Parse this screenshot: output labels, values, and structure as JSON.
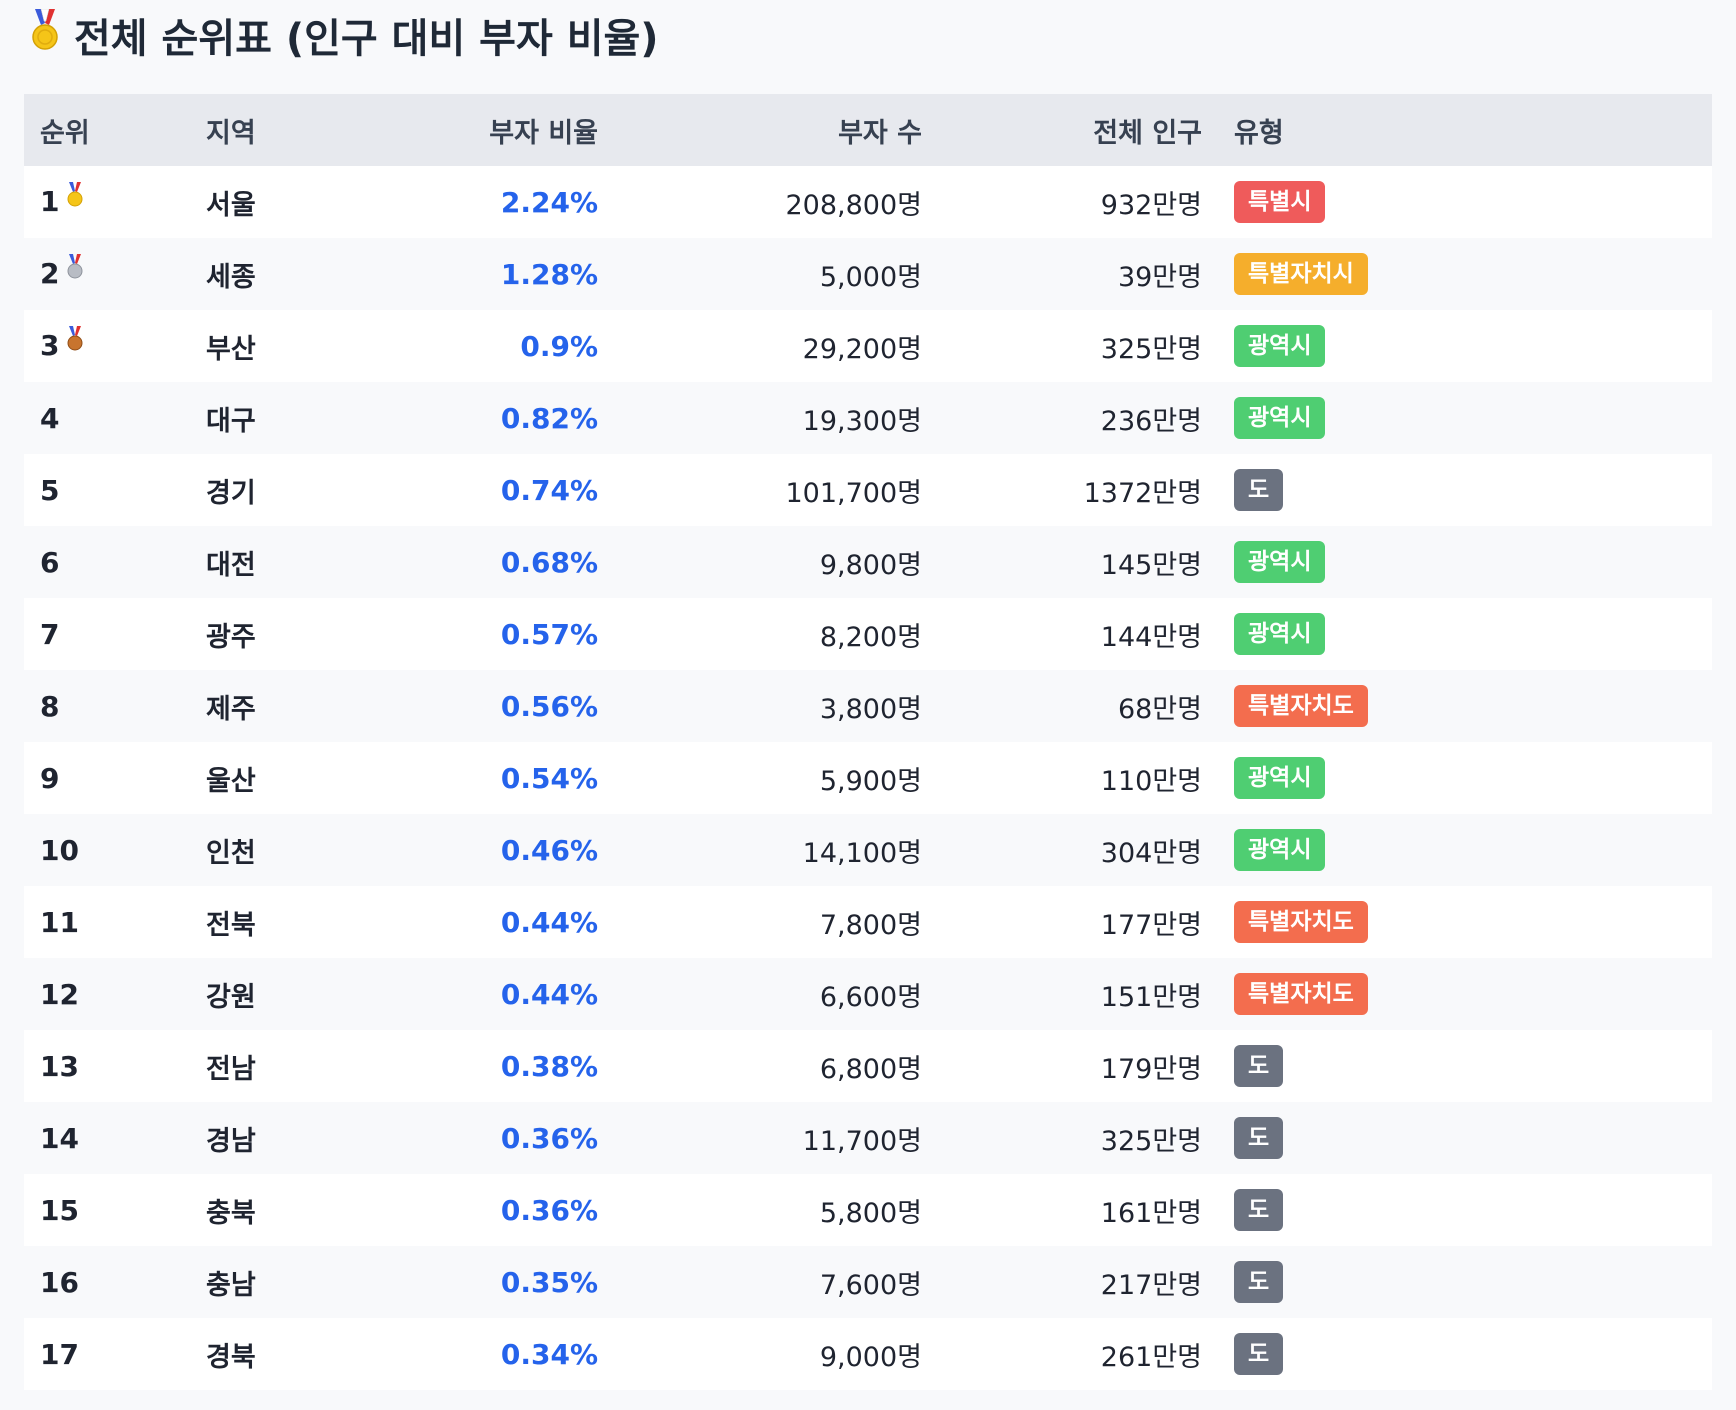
{
  "title": "전체 순위표 (인구 대비 부자 비율)",
  "columns": {
    "rank": "순위",
    "region": "지역",
    "ratio": "부자 비율",
    "rich": "부자 수",
    "population": "전체 인구",
    "type": "유형"
  },
  "type_colors": {
    "특별시": "#ef5b5b",
    "특별자치시": "#f5ae2c",
    "광역시": "#4fce72",
    "도": "#6b7280",
    "특별자치도": "#f36d4e"
  },
  "rows": [
    {
      "rank": "1",
      "medal": "gold",
      "region": "서울",
      "ratio": "2.24%",
      "rich": "208,800명",
      "population": "932만명",
      "type": "특별시"
    },
    {
      "rank": "2",
      "medal": "silver",
      "region": "세종",
      "ratio": "1.28%",
      "rich": "5,000명",
      "population": "39만명",
      "type": "특별자치시"
    },
    {
      "rank": "3",
      "medal": "bronze",
      "region": "부산",
      "ratio": "0.9%",
      "rich": "29,200명",
      "population": "325만명",
      "type": "광역시"
    },
    {
      "rank": "4",
      "region": "대구",
      "ratio": "0.82%",
      "rich": "19,300명",
      "population": "236만명",
      "type": "광역시"
    },
    {
      "rank": "5",
      "region": "경기",
      "ratio": "0.74%",
      "rich": "101,700명",
      "population": "1372만명",
      "type": "도"
    },
    {
      "rank": "6",
      "region": "대전",
      "ratio": "0.68%",
      "rich": "9,800명",
      "population": "145만명",
      "type": "광역시"
    },
    {
      "rank": "7",
      "region": "광주",
      "ratio": "0.57%",
      "rich": "8,200명",
      "population": "144만명",
      "type": "광역시"
    },
    {
      "rank": "8",
      "region": "제주",
      "ratio": "0.56%",
      "rich": "3,800명",
      "population": "68만명",
      "type": "특별자치도"
    },
    {
      "rank": "9",
      "region": "울산",
      "ratio": "0.54%",
      "rich": "5,900명",
      "population": "110만명",
      "type": "광역시"
    },
    {
      "rank": "10",
      "region": "인천",
      "ratio": "0.46%",
      "rich": "14,100명",
      "population": "304만명",
      "type": "광역시"
    },
    {
      "rank": "11",
      "region": "전북",
      "ratio": "0.44%",
      "rich": "7,800명",
      "population": "177만명",
      "type": "특별자치도"
    },
    {
      "rank": "12",
      "region": "강원",
      "ratio": "0.44%",
      "rich": "6,600명",
      "population": "151만명",
      "type": "특별자치도"
    },
    {
      "rank": "13",
      "region": "전남",
      "ratio": "0.38%",
      "rich": "6,800명",
      "population": "179만명",
      "type": "도"
    },
    {
      "rank": "14",
      "region": "경남",
      "ratio": "0.36%",
      "rich": "11,700명",
      "population": "325만명",
      "type": "도"
    },
    {
      "rank": "15",
      "region": "충북",
      "ratio": "0.36%",
      "rich": "5,800명",
      "population": "161만명",
      "type": "도"
    },
    {
      "rank": "16",
      "region": "충남",
      "ratio": "0.35%",
      "rich": "7,600명",
      "population": "217만명",
      "type": "도"
    },
    {
      "rank": "17",
      "region": "경북",
      "ratio": "0.34%",
      "rich": "9,000명",
      "population": "261만명",
      "type": "도"
    }
  ]
}
